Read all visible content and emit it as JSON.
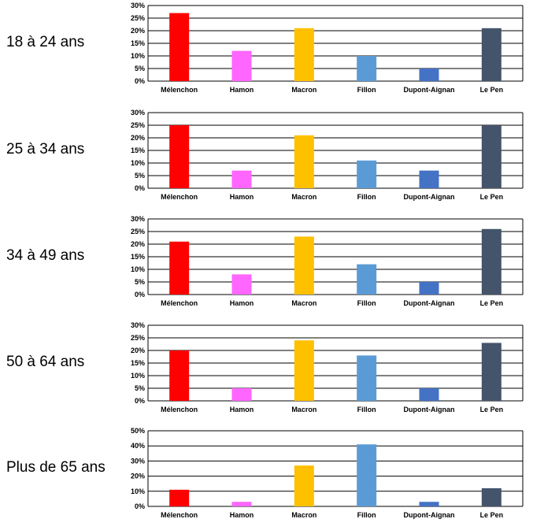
{
  "chart_data": [
    {
      "type": "bar",
      "label": "18 à 24 ans",
      "categories": [
        "Mélenchon",
        "Hamon",
        "Macron",
        "Fillon",
        "Dupont-Aignan",
        "Le Pen"
      ],
      "values": [
        27,
        12,
        21,
        10,
        5,
        21
      ],
      "ylim": [
        0,
        30
      ],
      "yticks": [
        "0%",
        "5%",
        "10%",
        "15%",
        "20%",
        "25%",
        "30%"
      ],
      "grid": true,
      "colors": [
        "#ff0000",
        "#ff66ff",
        "#ffc000",
        "#5b9bd5",
        "#4472c4",
        "#44546a"
      ]
    },
    {
      "type": "bar",
      "label": "25 à 34 ans",
      "categories": [
        "Mélenchon",
        "Hamon",
        "Macron",
        "Fillon",
        "Dupont-Aignan",
        "Le Pen"
      ],
      "values": [
        25,
        7,
        21,
        11,
        7,
        25
      ],
      "ylim": [
        0,
        30
      ],
      "yticks": [
        "0%",
        "5%",
        "10%",
        "15%",
        "20%",
        "25%",
        "30%"
      ],
      "grid": true,
      "colors": [
        "#ff0000",
        "#ff66ff",
        "#ffc000",
        "#5b9bd5",
        "#4472c4",
        "#44546a"
      ]
    },
    {
      "type": "bar",
      "label": "34 à 49 ans",
      "categories": [
        "Mélenchon",
        "Hamon",
        "Macron",
        "Fillon",
        "Dupont-Aignan",
        "Le Pen"
      ],
      "values": [
        21,
        8,
        23,
        12,
        5,
        26
      ],
      "ylim": [
        0,
        30
      ],
      "yticks": [
        "0%",
        "5%",
        "10%",
        "15%",
        "20%",
        "25%",
        "30%"
      ],
      "grid": true,
      "colors": [
        "#ff0000",
        "#ff66ff",
        "#ffc000",
        "#5b9bd5",
        "#4472c4",
        "#44546a"
      ]
    },
    {
      "type": "bar",
      "label": "50 à 64 ans",
      "categories": [
        "Mélenchon",
        "Hamon",
        "Macron",
        "Fillon",
        "Dupont-Aignan",
        "Le Pen"
      ],
      "values": [
        20,
        5,
        24,
        18,
        5,
        23
      ],
      "ylim": [
        0,
        30
      ],
      "yticks": [
        "0%",
        "5%",
        "10%",
        "15%",
        "20%",
        "25%",
        "30%"
      ],
      "grid": true,
      "colors": [
        "#ff0000",
        "#ff66ff",
        "#ffc000",
        "#5b9bd5",
        "#4472c4",
        "#44546a"
      ]
    },
    {
      "type": "bar",
      "label": "Plus de 65 ans",
      "categories": [
        "Mélenchon",
        "Hamon",
        "Macron",
        "Fillon",
        "Dupont-Aignan",
        "Le Pen"
      ],
      "values": [
        11,
        3,
        27,
        41,
        3,
        12
      ],
      "ylim": [
        0,
        50
      ],
      "yticks": [
        "0%",
        "10%",
        "20%",
        "30%",
        "40%",
        "50%"
      ],
      "grid": true,
      "colors": [
        "#ff0000",
        "#ff66ff",
        "#ffc000",
        "#5b9bd5",
        "#4472c4",
        "#44546a"
      ]
    }
  ]
}
